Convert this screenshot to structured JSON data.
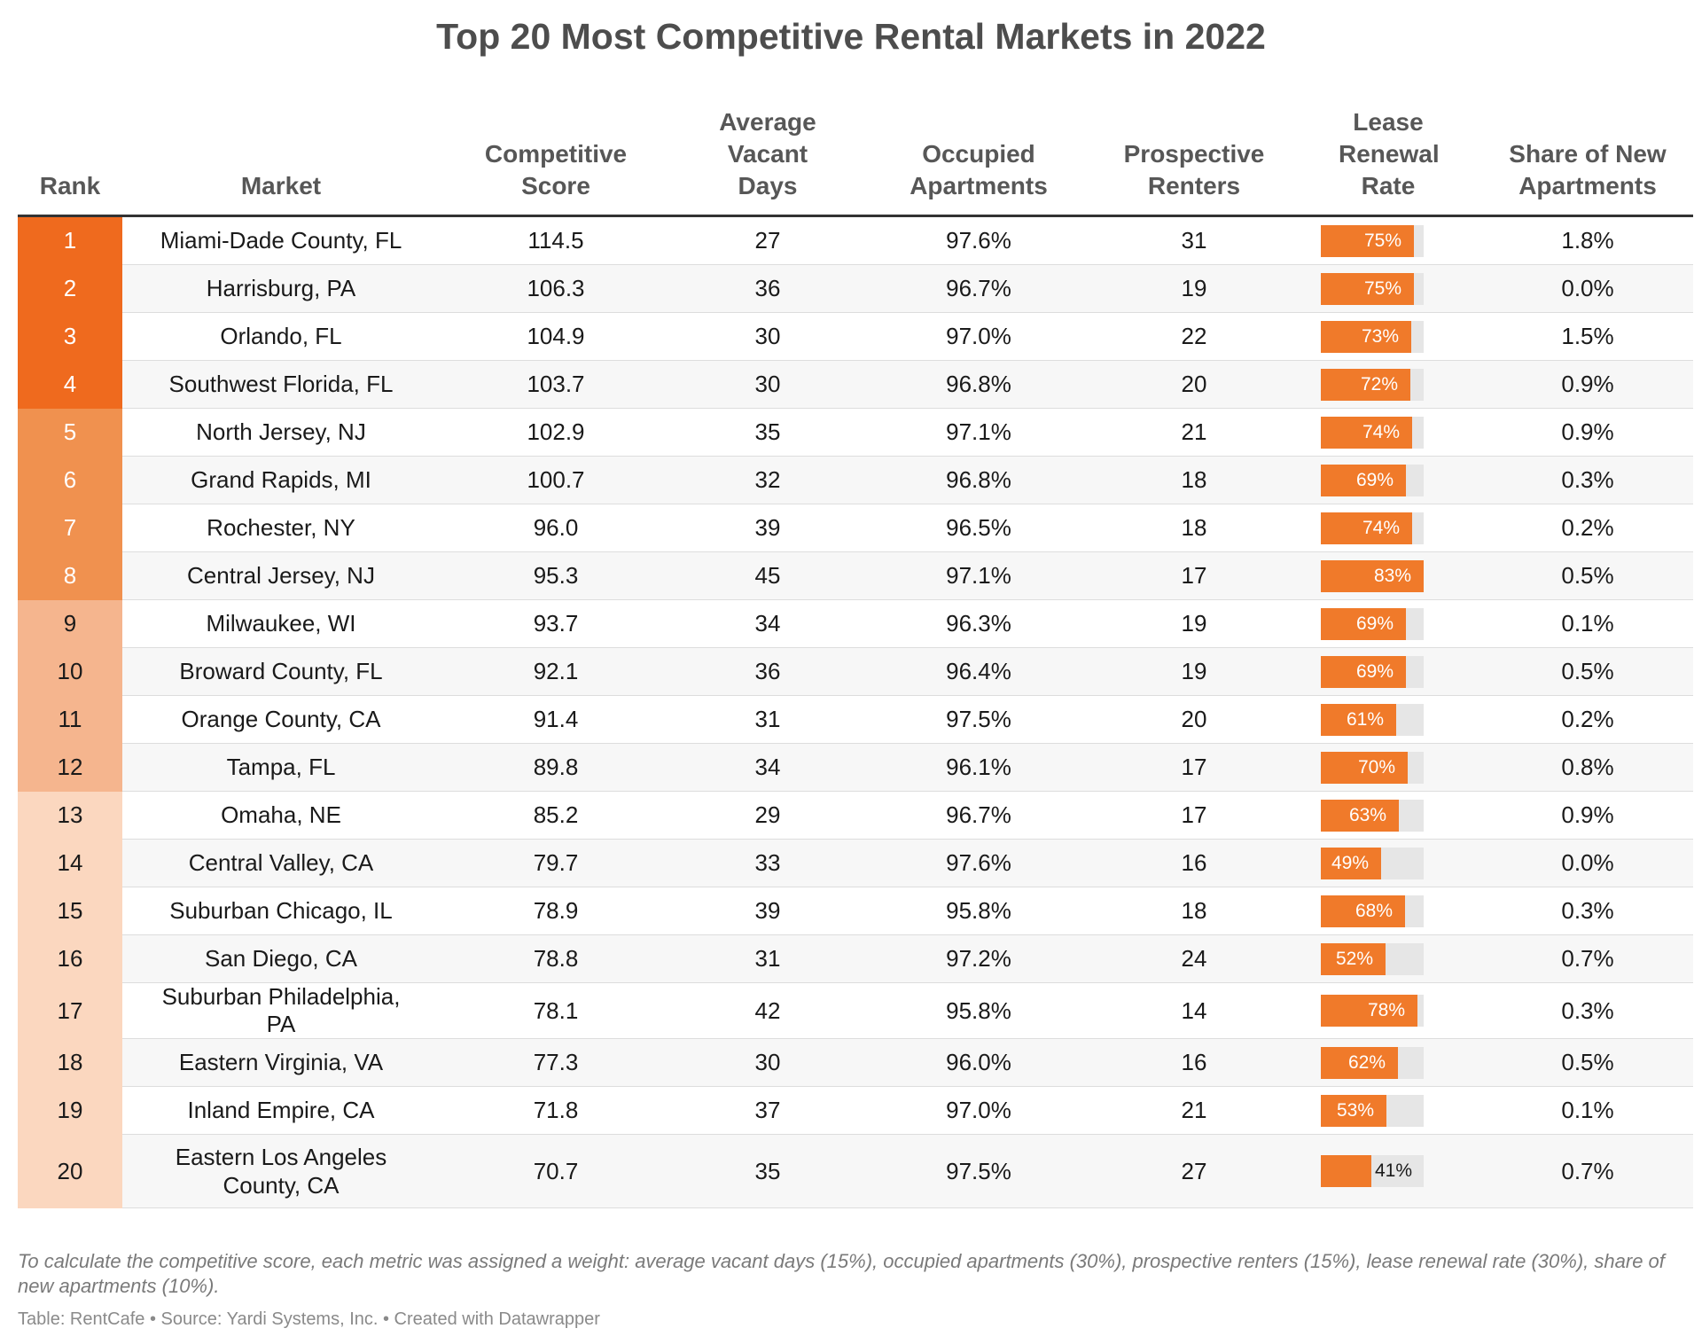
{
  "chart_data": {
    "type": "table",
    "title": "Top 20 Most Competitive Rental Markets in 2022",
    "columns": [
      "Rank",
      "Market",
      "Competitive Score",
      "Average Vacant Days",
      "Occupied Apartments",
      "Prospective Renters",
      "Lease Renewal Rate",
      "Share of New Apartments"
    ],
    "rows": [
      {
        "rank": "1",
        "market": "Miami-Dade County, FL",
        "score": "114.5",
        "vacant_days": "27",
        "occupied": "97.6%",
        "renters": "31",
        "renewal": 75,
        "renewal_label": "75%",
        "share_new": "1.8%"
      },
      {
        "rank": "2",
        "market": "Harrisburg, PA",
        "score": "106.3",
        "vacant_days": "36",
        "occupied": "96.7%",
        "renters": "19",
        "renewal": 75,
        "renewal_label": "75%",
        "share_new": "0.0%"
      },
      {
        "rank": "3",
        "market": "Orlando, FL",
        "score": "104.9",
        "vacant_days": "30",
        "occupied": "97.0%",
        "renters": "22",
        "renewal": 73,
        "renewal_label": "73%",
        "share_new": "1.5%"
      },
      {
        "rank": "4",
        "market": "Southwest Florida, FL",
        "score": "103.7",
        "vacant_days": "30",
        "occupied": "96.8%",
        "renters": "20",
        "renewal": 72,
        "renewal_label": "72%",
        "share_new": "0.9%"
      },
      {
        "rank": "5",
        "market": "North Jersey, NJ",
        "score": "102.9",
        "vacant_days": "35",
        "occupied": "97.1%",
        "renters": "21",
        "renewal": 74,
        "renewal_label": "74%",
        "share_new": "0.9%"
      },
      {
        "rank": "6",
        "market": "Grand Rapids, MI",
        "score": "100.7",
        "vacant_days": "32",
        "occupied": "96.8%",
        "renters": "18",
        "renewal": 69,
        "renewal_label": "69%",
        "share_new": "0.3%"
      },
      {
        "rank": "7",
        "market": "Rochester, NY",
        "score": "96.0",
        "vacant_days": "39",
        "occupied": "96.5%",
        "renters": "18",
        "renewal": 74,
        "renewal_label": "74%",
        "share_new": "0.2%"
      },
      {
        "rank": "8",
        "market": "Central Jersey, NJ",
        "score": "95.3",
        "vacant_days": "45",
        "occupied": "97.1%",
        "renters": "17",
        "renewal": 83,
        "renewal_label": "83%",
        "share_new": "0.5%"
      },
      {
        "rank": "9",
        "market": "Milwaukee, WI",
        "score": "93.7",
        "vacant_days": "34",
        "occupied": "96.3%",
        "renters": "19",
        "renewal": 69,
        "renewal_label": "69%",
        "share_new": "0.1%"
      },
      {
        "rank": "10",
        "market": "Broward County, FL",
        "score": "92.1",
        "vacant_days": "36",
        "occupied": "96.4%",
        "renters": "19",
        "renewal": 69,
        "renewal_label": "69%",
        "share_new": "0.5%"
      },
      {
        "rank": "11",
        "market": "Orange County, CA",
        "score": "91.4",
        "vacant_days": "31",
        "occupied": "97.5%",
        "renters": "20",
        "renewal": 61,
        "renewal_label": "61%",
        "share_new": "0.2%"
      },
      {
        "rank": "12",
        "market": "Tampa, FL",
        "score": "89.8",
        "vacant_days": "34",
        "occupied": "96.1%",
        "renters": "17",
        "renewal": 70,
        "renewal_label": "70%",
        "share_new": "0.8%"
      },
      {
        "rank": "13",
        "market": "Omaha, NE",
        "score": "85.2",
        "vacant_days": "29",
        "occupied": "96.7%",
        "renters": "17",
        "renewal": 63,
        "renewal_label": "63%",
        "share_new": "0.9%"
      },
      {
        "rank": "14",
        "market": "Central Valley, CA",
        "score": "79.7",
        "vacant_days": "33",
        "occupied": "97.6%",
        "renters": "16",
        "renewal": 49,
        "renewal_label": "49%",
        "share_new": "0.0%"
      },
      {
        "rank": "15",
        "market": "Suburban Chicago, IL",
        "score": "78.9",
        "vacant_days": "39",
        "occupied": "95.8%",
        "renters": "18",
        "renewal": 68,
        "renewal_label": "68%",
        "share_new": "0.3%"
      },
      {
        "rank": "16",
        "market": "San Diego, CA",
        "score": "78.8",
        "vacant_days": "31",
        "occupied": "97.2%",
        "renters": "24",
        "renewal": 52,
        "renewal_label": "52%",
        "share_new": "0.7%"
      },
      {
        "rank": "17",
        "market": "Suburban Philadelphia, PA",
        "score": "78.1",
        "vacant_days": "42",
        "occupied": "95.8%",
        "renters": "14",
        "renewal": 78,
        "renewal_label": "78%",
        "share_new": "0.3%"
      },
      {
        "rank": "18",
        "market": "Eastern Virginia, VA",
        "score": "77.3",
        "vacant_days": "30",
        "occupied": "96.0%",
        "renters": "16",
        "renewal": 62,
        "renewal_label": "62%",
        "share_new": "0.5%"
      },
      {
        "rank": "19",
        "market": "Inland Empire, CA",
        "score": "71.8",
        "vacant_days": "37",
        "occupied": "97.0%",
        "renters": "21",
        "renewal": 53,
        "renewal_label": "53%",
        "share_new": "0.1%"
      },
      {
        "rank": "20",
        "market": "Eastern Los Angeles County, CA",
        "score": "70.7",
        "vacant_days": "35",
        "occupied": "97.5%",
        "renters": "27",
        "renewal": 41,
        "renewal_label": "41%",
        "share_new": "0.7%"
      }
    ],
    "renewal_bar_max": 83,
    "rank_colors": [
      "#ef6a1e",
      "#f0914f",
      "#f5b58e",
      "#fbd7bf"
    ],
    "bar_color": "#f07a2a",
    "bar_track_color": "#e6e6e6"
  },
  "header": {
    "rank": "Rank",
    "market": "Market",
    "score": "Competitive Score",
    "vacant_days": "Average Vacant Days",
    "occupied": "Occupied Apartments",
    "renters": "Prospective Renters",
    "renewal": "Lease Renewal Rate",
    "share_new": "Share of New Apartments"
  },
  "footer": {
    "note": "To calculate the competitive score, each metric was assigned a weight: average vacant days (15%), occupied apartments (30%), prospective renters (15%), lease renewal rate (30%), share of new apartments (10%).",
    "source": "Table: RentCafe • Source: Yardi Systems, Inc. • Created with Datawrapper"
  }
}
